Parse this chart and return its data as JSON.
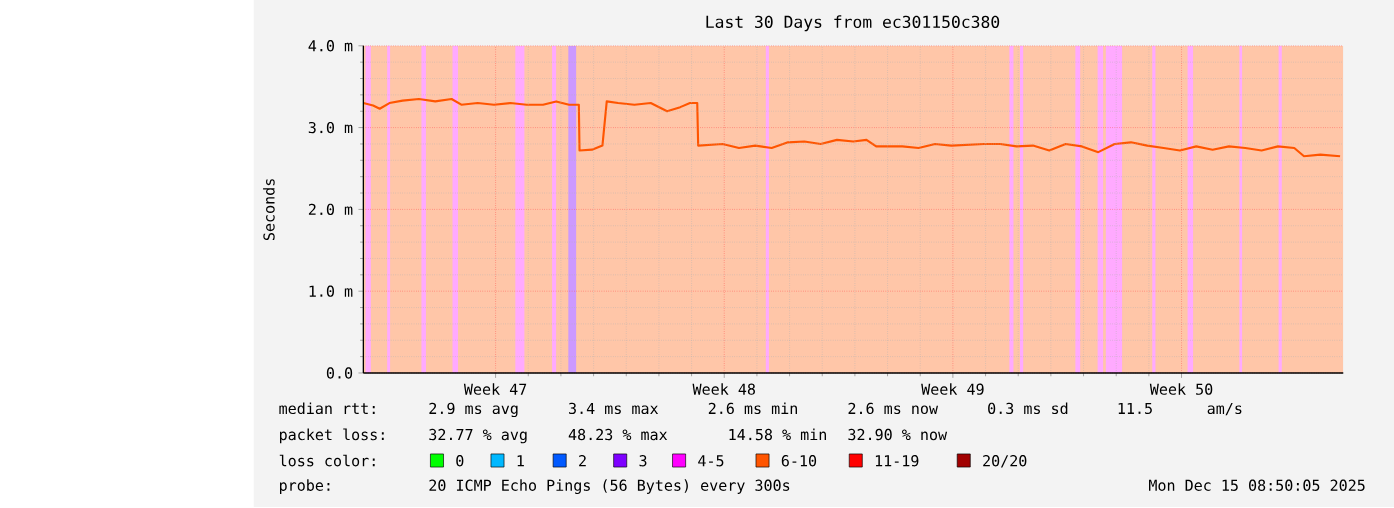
{
  "chart_data": {
    "type": "line",
    "title": "Last 30 Days from ec301150c380",
    "ylabel": "Seconds",
    "xlim": [
      "2025-11-15T08:50",
      "2025-12-15T08:50"
    ],
    "ylim": [
      0,
      4
    ],
    "xticks": [
      {
        "value": "2025-11-19T10:00",
        "label": "Week 47"
      },
      {
        "value": "2025-11-26T10:00",
        "label": "Week 48"
      },
      {
        "value": "2025-12-03T10:00",
        "label": "Week 49"
      },
      {
        "value": "2025-12-10T10:00",
        "label": "Week 50"
      }
    ],
    "yticks": [
      {
        "value": 0,
        "label": "0.0"
      },
      {
        "value": 1,
        "label": "1.0 m"
      },
      {
        "value": 2,
        "label": "2.0 m"
      },
      {
        "value": 3,
        "label": "3.0 m"
      },
      {
        "value": 4,
        "label": "4.0 m"
      }
    ],
    "grid": true,
    "marker": "none",
    "line_style": "solid",
    "series": [
      {
        "color": "#ff5500",
        "x": [
          "2025-11-15T08:50",
          "2025-11-15T16:00",
          "2025-11-15T20:50",
          "2025-11-16T04:00",
          "2025-11-16T13:40",
          "2025-11-17T01:40",
          "2025-11-17T13:40",
          "2025-11-18T01:40",
          "2025-11-18T08:50",
          "2025-11-18T20:50",
          "2025-11-19T08:50",
          "2025-11-19T20:50",
          "2025-11-20T08:50",
          "2025-11-20T20:50",
          "2025-11-21T06:30",
          "2025-11-21T16:00",
          "2025-11-21T23:10",
          "2025-11-21T23:40",
          "2025-11-22T08:50",
          "2025-11-22T16:30",
          "2025-11-22T19:40",
          "2025-11-23T04:00",
          "2025-11-23T16:00",
          "2025-11-24T04:00",
          "2025-11-24T16:00",
          "2025-11-25T01:40",
          "2025-11-25T08:50",
          "2025-11-25T14:10",
          "2025-11-25T14:50",
          "2025-11-26T08:50",
          "2025-11-26T20:50",
          "2025-11-27T08:50",
          "2025-11-27T20:50",
          "2025-11-28T08:50",
          "2025-11-28T20:50",
          "2025-11-29T08:50",
          "2025-11-29T20:50",
          "2025-11-30T08:50",
          "2025-11-30T18:30",
          "2025-12-01T01:40",
          "2025-12-01T20:50",
          "2025-12-02T08:50",
          "2025-12-02T20:50",
          "2025-12-03T08:50",
          "2025-12-04T08:50",
          "2025-12-04T20:50",
          "2025-12-05T08:50",
          "2025-12-05T20:50",
          "2025-12-06T08:50",
          "2025-12-06T20:50",
          "2025-12-07T08:50",
          "2025-12-07T20:50",
          "2025-12-08T08:50",
          "2025-12-08T20:50",
          "2025-12-09T08:50",
          "2025-12-09T20:50",
          "2025-12-10T08:50",
          "2025-12-10T20:50",
          "2025-12-11T08:50",
          "2025-12-11T20:50",
          "2025-12-12T08:50",
          "2025-12-12T20:50",
          "2025-12-13T08:50",
          "2025-12-13T20:50",
          "2025-12-14T04:00",
          "2025-12-14T16:00",
          "2025-12-15T06:30"
        ],
        "values": [
          3.3,
          3.27,
          3.23,
          3.3,
          3.33,
          3.35,
          3.32,
          3.35,
          3.28,
          3.3,
          3.28,
          3.3,
          3.28,
          3.28,
          3.32,
          3.28,
          3.28,
          2.72,
          2.73,
          2.78,
          3.32,
          3.3,
          3.28,
          3.3,
          3.2,
          3.25,
          3.3,
          3.3,
          2.78,
          2.8,
          2.75,
          2.78,
          2.75,
          2.82,
          2.83,
          2.8,
          2.85,
          2.83,
          2.85,
          2.77,
          2.77,
          2.75,
          2.8,
          2.78,
          2.8,
          2.8,
          2.77,
          2.78,
          2.72,
          2.8,
          2.77,
          2.7,
          2.8,
          2.82,
          2.78,
          2.75,
          2.72,
          2.77,
          2.73,
          2.77,
          2.75,
          2.72,
          2.77,
          2.75,
          2.65,
          2.67,
          2.65
        ]
      }
    ],
    "bands": [
      {
        "axis": "x",
        "from": "2025-11-15T08:50",
        "to": "2025-12-15T08:50",
        "color": "#ffc6a8"
      },
      {
        "axis": "x",
        "from": "2025-11-15T10:30",
        "to": "2025-11-15T14:20",
        "color": "#ffaaff"
      },
      {
        "axis": "x",
        "from": "2025-11-16T02:20",
        "to": "2025-11-16T04:30",
        "color": "#ffaaff"
      },
      {
        "axis": "x",
        "from": "2025-11-17T03:30",
        "to": "2025-11-17T06:50",
        "color": "#ffaaff"
      },
      {
        "axis": "x",
        "from": "2025-11-18T02:20",
        "to": "2025-11-18T06:30",
        "color": "#ffaaff"
      },
      {
        "axis": "x",
        "from": "2025-11-20T00:30",
        "to": "2025-11-20T07:10",
        "color": "#ffaaff"
      },
      {
        "axis": "x",
        "from": "2025-11-21T03:30",
        "to": "2025-11-21T06:30",
        "color": "#ffaaff"
      },
      {
        "axis": "x",
        "from": "2025-11-21T15:20",
        "to": "2025-11-21T21:20",
        "color": "#cc99ff"
      },
      {
        "axis": "x",
        "from": "2025-11-27T16:30",
        "to": "2025-11-27T18:50",
        "color": "#ffaaff"
      },
      {
        "axis": "x",
        "from": "2025-12-05T03:30",
        "to": "2025-12-05T06:30",
        "color": "#ffaaff"
      },
      {
        "axis": "x",
        "from": "2025-12-05T11:10",
        "to": "2025-12-05T13:40",
        "color": "#ffaaff"
      },
      {
        "axis": "x",
        "from": "2025-12-07T04:00",
        "to": "2025-12-07T07:40",
        "color": "#ffaaff"
      },
      {
        "axis": "x",
        "from": "2025-12-07T20:20",
        "to": "2025-12-08T00:30",
        "color": "#ffaaff"
      },
      {
        "axis": "x",
        "from": "2025-12-08T02:20",
        "to": "2025-12-08T14:20",
        "color": "#ffaaff"
      },
      {
        "axis": "x",
        "from": "2025-12-09T12:30",
        "to": "2025-12-09T14:50",
        "color": "#ffaaff"
      },
      {
        "axis": "x",
        "from": "2025-12-10T14:20",
        "to": "2025-12-10T18:30",
        "color": "#ffaaff"
      },
      {
        "axis": "x",
        "from": "2025-12-12T04:30",
        "to": "2025-12-12T06:30",
        "color": "#ffaaff"
      },
      {
        "axis": "x",
        "from": "2025-12-13T09:20",
        "to": "2025-12-13T11:40",
        "color": "#ffaaff"
      }
    ],
    "annotations": [
      "median rtt:",
      "2.9 ms avg",
      "3.4 ms max",
      "2.6 ms min",
      "2.6 ms now",
      "0.3 ms sd",
      "11.5",
      "am/s",
      "packet loss:",
      "32.77 % avg",
      "48.23 % max",
      "14.58 % min",
      "32.90 % now",
      "loss color:",
      "0",
      "1",
      "2",
      "3",
      "4-5",
      "6-10",
      "11-19",
      "20/20",
      "probe:",
      "20 ICMP Echo Pings (56 Bytes) every 300s",
      "Mon Dec 15 08:50:05 2025"
    ]
  }
}
